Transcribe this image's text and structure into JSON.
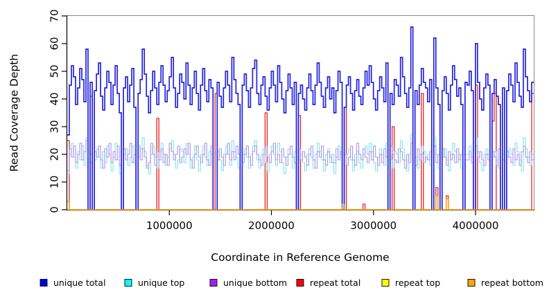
{
  "chart_data": {
    "type": "line",
    "variant": "step",
    "title": "",
    "xlabel": "Coordinate in Reference Genome",
    "ylabel": "Read Coverage Depth",
    "xlim": [
      0,
      4570000
    ],
    "ylim": [
      0,
      70
    ],
    "grid": false,
    "legend_position": "bottom",
    "x_ticks": [
      {
        "value": 1000000,
        "label": "1000000"
      },
      {
        "value": 2000000,
        "label": "2000000"
      },
      {
        "value": 3000000,
        "label": "3000000"
      },
      {
        "value": 4000000,
        "label": "4000000"
      }
    ],
    "y_ticks": [
      {
        "value": 0,
        "label": "0"
      },
      {
        "value": 10,
        "label": "10"
      },
      {
        "value": 20,
        "label": "20"
      },
      {
        "value": 30,
        "label": "30"
      },
      {
        "value": 40,
        "label": "40"
      },
      {
        "value": 50,
        "label": "50"
      },
      {
        "value": 60,
        "label": "60"
      },
      {
        "value": 70,
        "label": "70"
      }
    ],
    "bins": 224,
    "series": [
      {
        "id": "repeat-total",
        "name": "repeat total",
        "color": "#E62222",
        "line_width": 1.3,
        "opacity": 1,
        "n": 224,
        "default": 0,
        "at": {
          "0": 25,
          "11": 41,
          "43": 33,
          "71": 42,
          "95": 35,
          "111": 34,
          "133": 37,
          "142": 2,
          "156": 30,
          "170": 42,
          "177": 8,
          "182": 5,
          "196": 45,
          "204": 32,
          "205": 42,
          "223": 42
        }
      },
      {
        "id": "unique-top",
        "name": "unique top",
        "color": "#7DE3EE",
        "line_width": 1.1,
        "opacity": 1,
        "values": [
          13,
          20,
          24,
          19,
          15,
          21,
          18,
          23,
          16,
          26,
          0,
          20,
          0,
          18,
          22,
          19,
          15,
          21,
          17,
          23,
          20,
          14,
          19,
          24,
          18,
          13,
          0,
          20,
          22,
          16,
          19,
          23,
          17,
          0,
          19,
          22,
          26,
          21,
          16,
          13,
          20,
          23,
          19,
          15,
          21,
          24,
          20,
          16,
          19,
          22,
          25,
          20,
          15,
          18,
          22,
          21,
          17,
          24,
          20,
          15,
          19,
          23,
          18,
          14,
          20,
          23,
          19,
          16,
          21,
          20,
          0,
          0,
          21,
          18,
          14,
          20,
          23,
          20,
          16,
          25,
          21,
          19,
          15,
          0,
          20,
          22,
          19,
          15,
          20,
          23,
          25,
          18,
          15,
          20,
          22,
          17,
          14,
          20,
          23,
          20,
          16,
          24,
          21,
          17,
          13,
          19,
          22,
          20,
          15,
          21,
          0,
          18,
          20,
          17,
          14,
          20,
          22,
          19,
          15,
          20,
          24,
          21,
          18,
          14,
          20,
          22,
          17,
          20,
          13,
          19,
          23,
          20,
          0,
          16,
          20,
          22,
          18,
          14,
          20,
          21,
          17,
          15,
          20,
          23,
          20,
          24,
          21,
          17,
          14,
          19,
          22,
          20,
          16,
          24,
          0,
          18,
          15,
          21,
          20,
          17,
          25,
          22,
          18,
          14,
          20,
          27,
          0,
          19,
          15,
          20,
          23,
          21,
          18,
          20,
          16,
          0,
          26,
          20,
          15,
          0,
          19,
          22,
          18,
          14,
          20,
          24,
          21,
          17,
          20,
          15,
          0,
          20,
          20,
          23,
          19,
          0,
          26,
          21,
          17,
          14,
          20,
          22,
          20,
          0,
          19,
          21,
          18,
          15,
          0,
          20,
          0,
          19,
          22,
          20,
          16,
          24,
          21,
          18,
          14,
          26,
          22,
          19,
          16,
          20
        ]
      },
      {
        "id": "unique-bottom",
        "name": "unique bottom",
        "color": "#AE94E6",
        "line_width": 1.1,
        "opacity": 1,
        "values": [
          14,
          22,
          19,
          23,
          17,
          20,
          24,
          18,
          21,
          25,
          0,
          17,
          0,
          21,
          19,
          23,
          18,
          15,
          22,
          19,
          24,
          17,
          21,
          18,
          23,
          16,
          0,
          22,
          18,
          20,
          24,
          17,
          20,
          0,
          23,
          18,
          22,
          19,
          15,
          17,
          24,
          20,
          16,
          21,
          18,
          22,
          17,
          20,
          16,
          24,
          21,
          18,
          20,
          23,
          17,
          19,
          22,
          20,
          24,
          18,
          15,
          20,
          23,
          19,
          17,
          20,
          24,
          18,
          16,
          23,
          0,
          0,
          18,
          22,
          19,
          16,
          20,
          24,
          18,
          21,
          18,
          23,
          20,
          0,
          17,
          20,
          23,
          19,
          16,
          21,
          23,
          20,
          18,
          16,
          20,
          23,
          19,
          17,
          21,
          24,
          18,
          20,
          17,
          22,
          19,
          16,
          20,
          23,
          19,
          17,
          0,
          22,
          18,
          21,
          19,
          16,
          20,
          23,
          18,
          15,
          21,
          19,
          23,
          18,
          16,
          21,
          19,
          17,
          17,
          22,
          18,
          21,
          0,
          20,
          16,
          19,
          23,
          18,
          16,
          24,
          20,
          18,
          22,
          19,
          17,
          21,
          18,
          23,
          19,
          16,
          20,
          17,
          22,
          19,
          0,
          23,
          20,
          18,
          17,
          22,
          21,
          18,
          15,
          20,
          17,
          24,
          0,
          16,
          22,
          18,
          20,
          17,
          19,
          18,
          21,
          0,
          23,
          17,
          20,
          0,
          22,
          19,
          16,
          21,
          18,
          20,
          17,
          22,
          18,
          20,
          0,
          18,
          18,
          21,
          17,
          0,
          23,
          19,
          21,
          18,
          16,
          20,
          18,
          0,
          21,
          19,
          16,
          22,
          0,
          18,
          0,
          21,
          19,
          17,
          22,
          18,
          20,
          16,
          21,
          23,
          19,
          17,
          21,
          18
        ]
      },
      {
        "id": "unique-total",
        "name": "unique total",
        "color": "#2222DD",
        "line_width": 1.7,
        "opacity": 1,
        "values": [
          27,
          45,
          52,
          48,
          38,
          44,
          51,
          47,
          39,
          58,
          0,
          46,
          0,
          43,
          49,
          53,
          41,
          36,
          44,
          50,
          46,
          38,
          45,
          52,
          42,
          35,
          0,
          44,
          48,
          39,
          45,
          51,
          37,
          0,
          42,
          47,
          58,
          49,
          41,
          35,
          43,
          50,
          44,
          38,
          46,
          52,
          45,
          39,
          43,
          48,
          55,
          44,
          37,
          42,
          49,
          46,
          40,
          53,
          45,
          38,
          44,
          50,
          42,
          36,
          45,
          51,
          43,
          39,
          47,
          44,
          0,
          0,
          46,
          41,
          37,
          44,
          50,
          45,
          39,
          55,
          47,
          42,
          38,
          0,
          45,
          49,
          43,
          37,
          44,
          51,
          54,
          42,
          38,
          45,
          48,
          41,
          36,
          44,
          50,
          45,
          39,
          52,
          46,
          40,
          35,
          43,
          49,
          44,
          38,
          46,
          0,
          42,
          45,
          40,
          36,
          44,
          49,
          43,
          38,
          45,
          53,
          46,
          41,
          37,
          44,
          48,
          40,
          44,
          35,
          43,
          50,
          46,
          0,
          37,
          45,
          48,
          42,
          36,
          43,
          47,
          41,
          38,
          44,
          50,
          45,
          52,
          46,
          40,
          36,
          43,
          48,
          44,
          39,
          53,
          0,
          42,
          38,
          47,
          45,
          41,
          55,
          48,
          42,
          37,
          44,
          66,
          0,
          43,
          38,
          45,
          51,
          46,
          44,
          39,
          47,
          0,
          62,
          44,
          38,
          0,
          43,
          48,
          42,
          36,
          45,
          52,
          47,
          41,
          44,
          38,
          0,
          46,
          45,
          50,
          43,
          0,
          60,
          46,
          40,
          36,
          44,
          49,
          45,
          0,
          42,
          47,
          41,
          38,
          0,
          44,
          0,
          43,
          49,
          45,
          39,
          53,
          46,
          41,
          37,
          58,
          48,
          43,
          39,
          46
        ]
      },
      {
        "id": "repeat-top",
        "name": "repeat top",
        "color": "#EEEE00",
        "line_width": 1.1,
        "opacity": 0.7,
        "n": 224,
        "default": 0,
        "at": {
          "132": 2
        }
      },
      {
        "id": "repeat-bottom",
        "name": "repeat bottom",
        "color": "#FF9E00",
        "line_width": 1.5,
        "opacity": 1,
        "n": 224,
        "default": 0,
        "at": {
          "0": 3,
          "177": 5,
          "182": 4
        }
      }
    ],
    "legend": [
      {
        "label": "unique total",
        "color": "#0000EE"
      },
      {
        "label": "unique top",
        "color": "#00FFFF"
      },
      {
        "label": "unique bottom",
        "color": "#A020F0"
      },
      {
        "label": "repeat total",
        "color": "#FF0000"
      },
      {
        "label": "repeat top",
        "color": "#FFFF00"
      },
      {
        "label": "repeat bottom",
        "color": "#FFA500"
      }
    ]
  },
  "colors": {
    "frame": "#888888",
    "axis": "#000000",
    "background": "#ffffff"
  }
}
